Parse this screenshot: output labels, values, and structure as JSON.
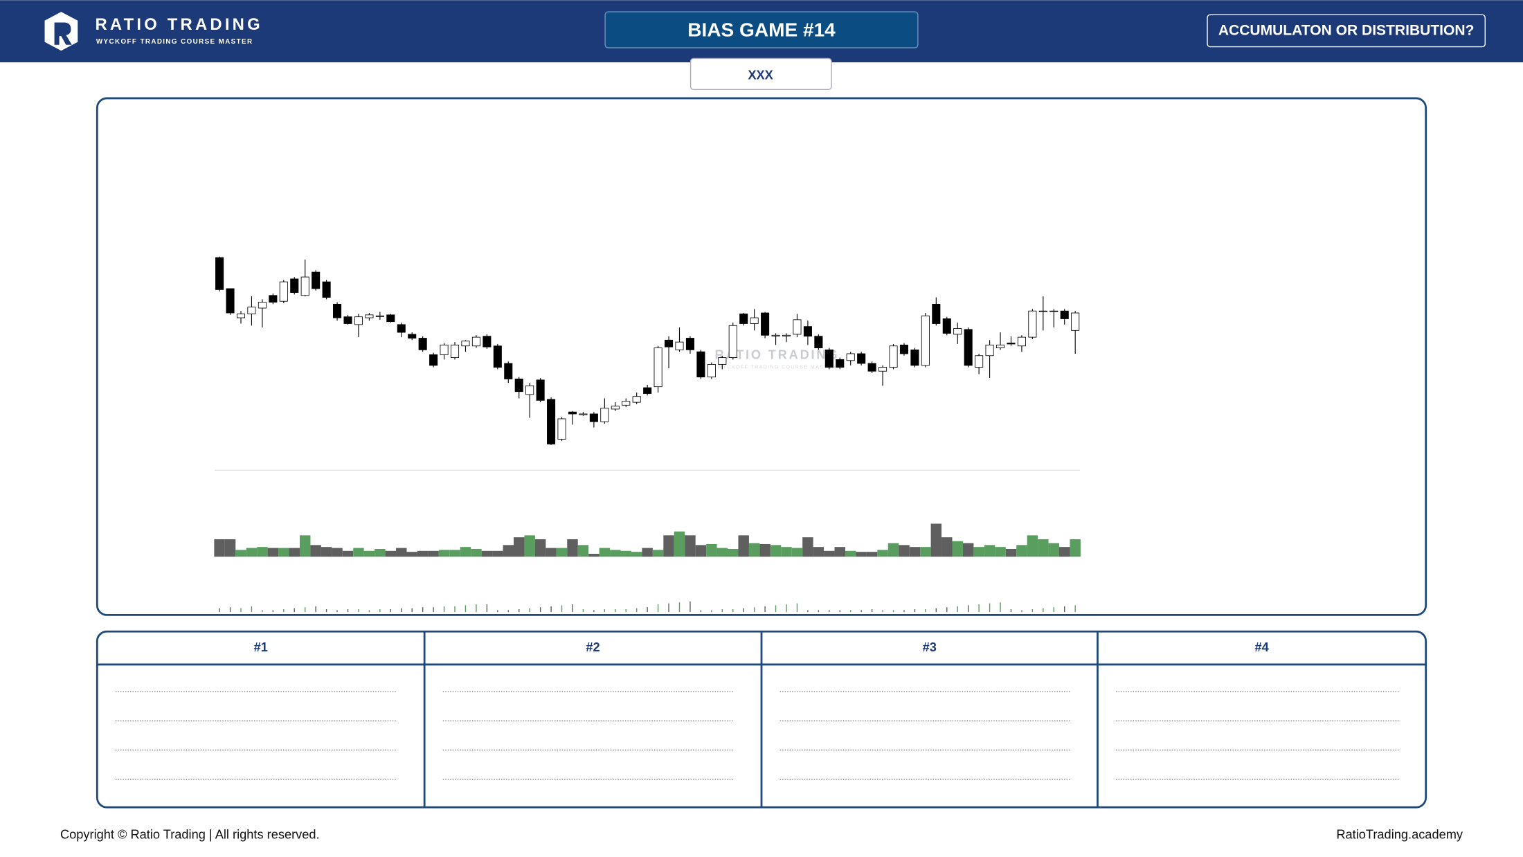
{
  "header": {
    "brand": "RATIO TRADING",
    "tagline": "WYCKOFF TRADING COURSE MASTER",
    "title": "BIAS GAME #14",
    "question": "ACCUMULATON OR DISTRIBUTION?",
    "tab": "XXX"
  },
  "chart_data": {
    "type": "candlestick",
    "watermark": {
      "title": "RATIO TRADING",
      "subtitle": "WYCKOFF TRADING COURSE MASTER"
    },
    "up_color": "#ffffff",
    "down_color": "#000000",
    "volume_up_color": "#5a9e5f",
    "volume_down_color": "#5f5f5f",
    "ylim": [
      20,
      220
    ],
    "volume_lim": [
      0,
      40
    ],
    "indicator_lim": [
      0,
      10
    ],
    "open": [
      215,
      183,
      153,
      157,
      163,
      176,
      170,
      193,
      176,
      200,
      190,
      167,
      154,
      146,
      153,
      155,
      156,
      146,
      136,
      132,
      115,
      115,
      112,
      124,
      124,
      134,
      124,
      106,
      90,
      74,
      89,
      69,
      28,
      56,
      54,
      54,
      46,
      59,
      63,
      66,
      81,
      82,
      130,
      120,
      132,
      118,
      92,
      105,
      112,
      157,
      147,
      158,
      135,
      135,
      136,
      144,
      134,
      120,
      110,
      109,
      116,
      106,
      98,
      102,
      125,
      120,
      104,
      167,
      152,
      136,
      141,
      102,
      114,
      122,
      127,
      124,
      133,
      160,
      160,
      160,
      140
    ],
    "high": [
      216,
      183,
      160,
      175,
      172,
      178,
      192,
      195,
      213,
      202,
      192,
      169,
      156,
      157,
      158,
      159,
      157,
      148,
      138,
      134,
      117,
      127,
      128,
      130,
      135,
      136,
      126,
      108,
      92,
      86,
      91,
      71,
      51,
      57,
      56,
      56,
      70,
      66,
      70,
      76,
      84,
      124,
      134,
      143,
      134,
      120,
      107,
      114,
      148,
      158,
      162,
      159,
      137,
      137,
      157,
      150,
      136,
      122,
      112,
      118,
      118,
      108,
      104,
      126,
      127,
      122,
      158,
      174,
      154,
      148,
      143,
      116,
      130,
      138,
      134,
      135,
      162,
      175,
      162,
      162,
      160
    ],
    "low": [
      180,
      156,
      147,
      145,
      143,
      167,
      168,
      177,
      175,
      181,
      172,
      150,
      146,
      133,
      150,
      151,
      148,
      133,
      130,
      118,
      102,
      110,
      110,
      118,
      122,
      121,
      100,
      86,
      70,
      50,
      66,
      22,
      26,
      43,
      52,
      40,
      44,
      57,
      61,
      64,
      73,
      76,
      101,
      118,
      116,
      90,
      90,
      100,
      110,
      145,
      140,
      132,
      125,
      128,
      133,
      125,
      120,
      100,
      100,
      104,
      104,
      96,
      83,
      100,
      114,
      102,
      102,
      145,
      135,
      126,
      102,
      95,
      91,
      120,
      124,
      118,
      131,
      140,
      143,
      146,
      116
    ],
    "close": [
      182,
      158,
      157,
      164,
      169,
      169,
      190,
      179,
      195,
      183,
      174,
      153,
      147,
      154,
      156,
      155,
      149,
      138,
      132,
      120,
      104,
      125,
      125,
      129,
      133,
      123,
      102,
      90,
      77,
      83,
      68,
      23,
      49,
      54,
      54,
      46,
      60,
      62,
      67,
      72,
      75,
      122,
      123,
      128,
      120,
      92,
      105,
      112,
      145,
      147,
      153,
      135,
      135,
      135,
      151,
      134,
      122,
      102,
      102,
      116,
      106,
      98,
      102,
      124,
      116,
      104,
      155,
      147,
      137,
      142,
      104,
      114,
      125,
      125,
      126,
      133,
      160,
      160,
      160,
      152,
      158
    ],
    "volume": [
      18,
      18,
      7,
      9,
      10,
      9,
      9,
      9,
      22,
      12,
      10,
      9,
      6,
      9,
      6,
      8,
      6,
      9,
      5,
      6,
      6,
      7,
      7,
      10,
      8,
      6,
      6,
      12,
      20,
      22,
      18,
      9,
      9,
      18,
      12,
      3,
      9,
      7,
      6,
      5,
      9,
      7,
      22,
      26,
      22,
      12,
      13,
      9,
      8,
      22,
      14,
      13,
      12,
      10,
      9,
      20,
      10,
      6,
      10,
      6,
      5,
      5,
      7,
      14,
      12,
      10,
      10,
      34,
      20,
      16,
      14,
      10,
      12,
      10,
      8,
      12,
      22,
      18,
      14,
      10,
      18
    ],
    "indicator": [
      4,
      5,
      4,
      6,
      2,
      2,
      3,
      4,
      5,
      6,
      3,
      2,
      3,
      3,
      2,
      3,
      3,
      4,
      4,
      5,
      5,
      6,
      6,
      7,
      8,
      8,
      2,
      2,
      3,
      4,
      5,
      6,
      7,
      8,
      3,
      2,
      3,
      3,
      3,
      4,
      5,
      8,
      9,
      10,
      11,
      2,
      2,
      3,
      3,
      4,
      5,
      6,
      7,
      8,
      9,
      2,
      2,
      2,
      2,
      2,
      2,
      3,
      2,
      2,
      2,
      3,
      3,
      4,
      5,
      6,
      7,
      8,
      9,
      10,
      3,
      2,
      3,
      4,
      5,
      6,
      7
    ]
  },
  "table": {
    "headers": [
      "#1",
      "#2",
      "#3",
      "#4"
    ]
  },
  "footer": {
    "copyright": "Copyright © Ratio Trading | All rights reserved.",
    "site": "RatioTrading.academy"
  }
}
